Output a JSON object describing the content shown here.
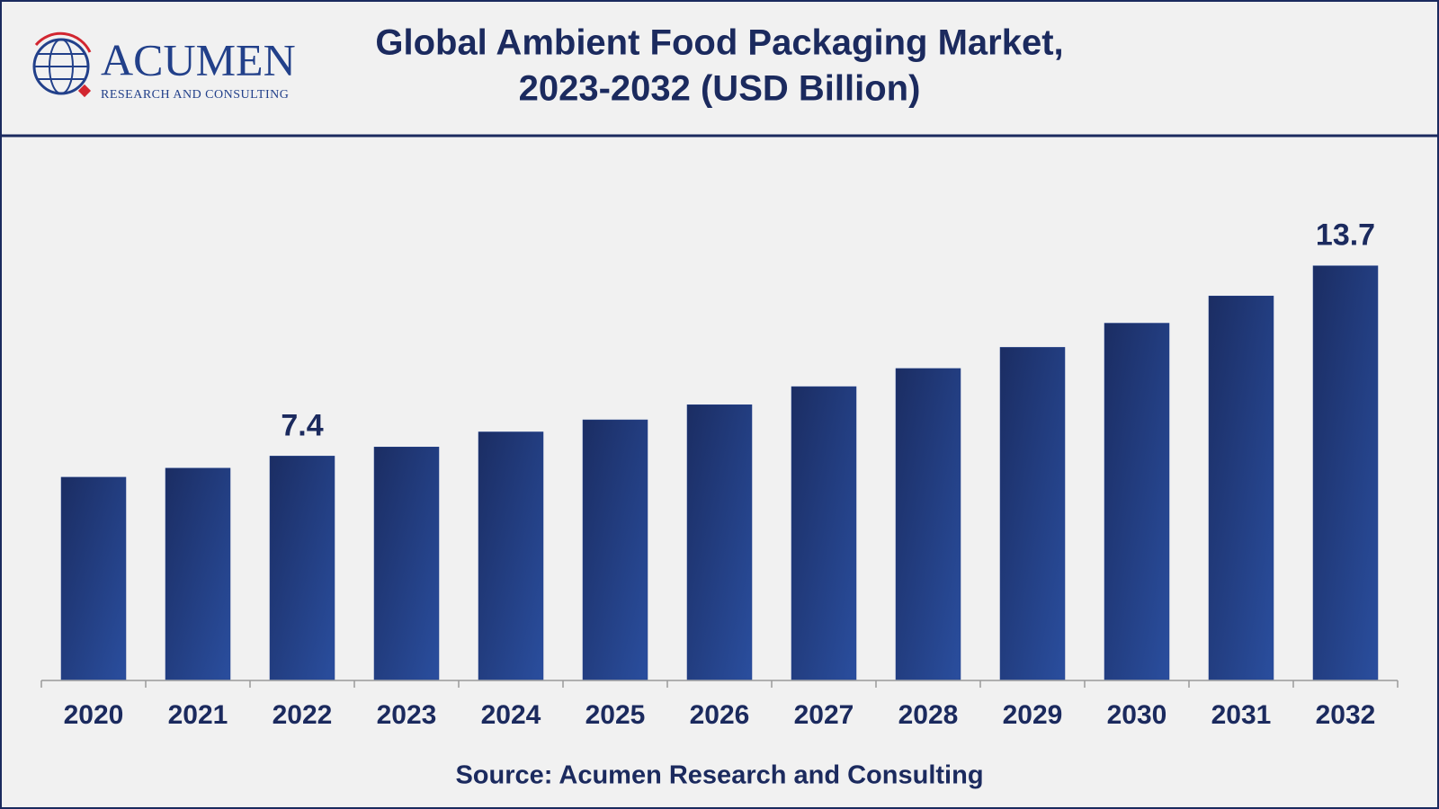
{
  "logo": {
    "name": "ACUMEN",
    "tagline": "RESEARCH AND CONSULTING"
  },
  "chart_data": {
    "type": "bar",
    "title": "Global Ambient Food Packaging Market,",
    "subtitle": "2023-2032 (USD Billion)",
    "source": "Source: Acumen Research and Consulting",
    "categories": [
      "2020",
      "2021",
      "2022",
      "2023",
      "2024",
      "2025",
      "2026",
      "2027",
      "2028",
      "2029",
      "2030",
      "2031",
      "2032"
    ],
    "values": [
      6.7,
      7.0,
      7.4,
      7.7,
      8.2,
      8.6,
      9.1,
      9.7,
      10.3,
      11.0,
      11.8,
      12.7,
      13.7
    ],
    "value_labels": [
      null,
      null,
      "7.4",
      null,
      null,
      null,
      null,
      null,
      null,
      null,
      null,
      null,
      "13.7"
    ],
    "color": "#22408a",
    "ylim": [
      0,
      15
    ],
    "grid": false
  }
}
